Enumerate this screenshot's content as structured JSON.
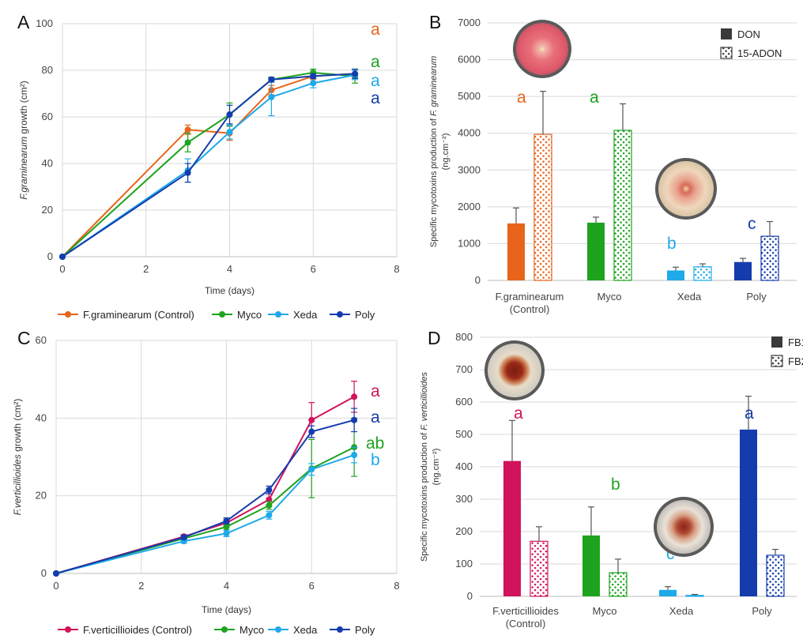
{
  "panels": [
    {
      "label": "A",
      "type": "line",
      "xlabel": "Time (days)",
      "ylabel_prefix": "F.graminearum",
      "ylabel_suffix": " growth (cm²)",
      "xlim": [
        0,
        8
      ],
      "ylim": [
        0,
        100
      ],
      "xticks": [
        0,
        2,
        4,
        6,
        8
      ],
      "yticks": [
        0,
        20,
        40,
        60,
        80,
        100
      ],
      "series": [
        {
          "name": "F.graminearum (Control)",
          "color": "#e8641b",
          "x": [
            0,
            3,
            4,
            5,
            6,
            7
          ],
          "y": [
            0,
            54.5,
            53,
            71.5,
            77.5,
            78.5
          ],
          "err": [
            0,
            2,
            3,
            2,
            1.5,
            1.5
          ]
        },
        {
          "name": "Myco",
          "color": "#1ea31e",
          "x": [
            0,
            3,
            4,
            5,
            6,
            7
          ],
          "y": [
            0,
            49,
            61,
            76,
            79,
            77.5
          ],
          "err": [
            0,
            4,
            5,
            1,
            1.5,
            3
          ]
        },
        {
          "name": "Xeda",
          "color": "#1ea9e8",
          "x": [
            0,
            3,
            4,
            5,
            6,
            7
          ],
          "y": [
            0,
            37,
            53.5,
            68.5,
            74.5,
            78
          ],
          "err": [
            0,
            5,
            3,
            8,
            2,
            2
          ]
        },
        {
          "name": "Poly",
          "color": "#143cad",
          "x": [
            0,
            3,
            4,
            5,
            6,
            7
          ],
          "y": [
            0,
            36,
            61,
            76,
            77.5,
            78.5
          ],
          "err": [
            0,
            4,
            4,
            1,
            1,
            2
          ]
        }
      ],
      "letters": [
        {
          "text": "a",
          "color": "#e8641b"
        },
        {
          "text": "a",
          "color": "#1ea31e"
        },
        {
          "text": "a",
          "color": "#1ea9e8"
        },
        {
          "text": "a",
          "color": "#143cad"
        }
      ]
    },
    {
      "label": "B",
      "type": "bar",
      "ylabel_line1_prefix": "Specific mycotoxins production of ",
      "ylabel_line1_italic": "F. graminearum",
      "ylabel_line2": "(ng.cm⁻²)",
      "ylim": [
        0,
        7000
      ],
      "yticks": [
        0,
        1000,
        2000,
        3000,
        4000,
        5000,
        6000,
        7000
      ],
      "categories": [
        "F.graminearum\n(Control)",
        "Myco",
        "Xeda",
        "Poly"
      ],
      "colors": [
        "#e8641b",
        "#1ea31e",
        "#1ea9e8",
        "#143cad"
      ],
      "series": [
        {
          "name": "DON",
          "values": [
            1550,
            1570,
            270,
            500
          ],
          "err": [
            420,
            150,
            90,
            100
          ]
        },
        {
          "name": "15-ADON",
          "values": [
            3970,
            4080,
            370,
            1200
          ],
          "err": [
            1170,
            720,
            80,
            400
          ]
        }
      ],
      "letters": [
        {
          "text": "a",
          "color": "#e8641b",
          "cat": 0
        },
        {
          "text": "a",
          "color": "#1ea31e",
          "cat": 1
        },
        {
          "text": "b",
          "color": "#1ea9e8",
          "cat": 2
        },
        {
          "text": "c",
          "color": "#143cad",
          "cat": 3
        }
      ]
    },
    {
      "label": "C",
      "type": "line",
      "xlabel": "Time (days)",
      "ylabel_prefix": "F.verticillioides",
      "ylabel_suffix": " growth (cm²)",
      "xlim": [
        0,
        8
      ],
      "ylim": [
        0,
        60
      ],
      "xticks": [
        0,
        2,
        4,
        6,
        8
      ],
      "yticks": [
        0,
        20,
        40,
        60
      ],
      "series": [
        {
          "name": "F.verticillioides (Control)",
          "color": "#d0135a",
          "x": [
            0,
            3,
            4,
            5,
            6,
            7
          ],
          "y": [
            0,
            9.5,
            13,
            19,
            39.5,
            45.5
          ],
          "err": [
            0,
            0.5,
            0.8,
            1.5,
            4.5,
            4
          ]
        },
        {
          "name": "Myco",
          "color": "#1ea31e",
          "x": [
            0,
            3,
            4,
            5,
            6,
            7
          ],
          "y": [
            0,
            9,
            12,
            17.5,
            27,
            32.5
          ],
          "err": [
            0,
            0.5,
            0.8,
            1,
            7.5,
            7.5
          ]
        },
        {
          "name": "Xeda",
          "color": "#1ea9e8",
          "x": [
            0,
            3,
            4,
            5,
            6,
            7
          ],
          "y": [
            0,
            8.3,
            10.3,
            15,
            26.8,
            30.5
          ],
          "err": [
            0,
            0.5,
            0.8,
            1,
            1.5,
            2
          ]
        },
        {
          "name": "Poly",
          "color": "#143cad",
          "x": [
            0,
            3,
            4,
            5,
            6,
            7
          ],
          "y": [
            0,
            9.3,
            13.5,
            21.5,
            36.5,
            39.5
          ],
          "err": [
            0,
            0.5,
            0.8,
            1,
            1.5,
            3
          ]
        }
      ],
      "letters": [
        {
          "text": "a",
          "color": "#d0135a"
        },
        {
          "text": "a",
          "color": "#143cad"
        },
        {
          "text": "ab",
          "color": "#1ea31e"
        },
        {
          "text": "b",
          "color": "#1ea9e8"
        }
      ]
    },
    {
      "label": "D",
      "type": "bar",
      "ylabel_line1_prefix": "Specific mycotoxins production of ",
      "ylabel_line1_italic": "F. verticillioides",
      "ylabel_line2": "(ng.cm⁻²)",
      "ylim": [
        0,
        800
      ],
      "yticks": [
        0,
        100,
        200,
        300,
        400,
        500,
        600,
        700,
        800
      ],
      "categories": [
        "F.verticillioides\n(Control)",
        "Myco",
        "Xeda",
        "Poly"
      ],
      "colors": [
        "#d0135a",
        "#1ea31e",
        "#1ea9e8",
        "#143cad"
      ],
      "series": [
        {
          "name": "FB1",
          "values": [
            418,
            188,
            20,
            515
          ],
          "err": [
            125,
            88,
            10,
            103
          ]
        },
        {
          "name": "FB2",
          "values": [
            170,
            73,
            3,
            127
          ],
          "err": [
            45,
            42,
            3,
            18
          ]
        }
      ],
      "letters": [
        {
          "text": "a",
          "color": "#d0135a",
          "cat": 0
        },
        {
          "text": "b",
          "color": "#1ea31e",
          "cat": 1
        },
        {
          "text": "c",
          "color": "#1ea9e8",
          "cat": 2
        },
        {
          "text": "a",
          "color": "#143cad",
          "cat": 3
        }
      ]
    }
  ],
  "petri_icons": [
    "petri-dish-red-colony",
    "petri-dish-pale-colony",
    "petri-dish-dark-red-colony",
    "petri-dish-xeda-colony"
  ]
}
